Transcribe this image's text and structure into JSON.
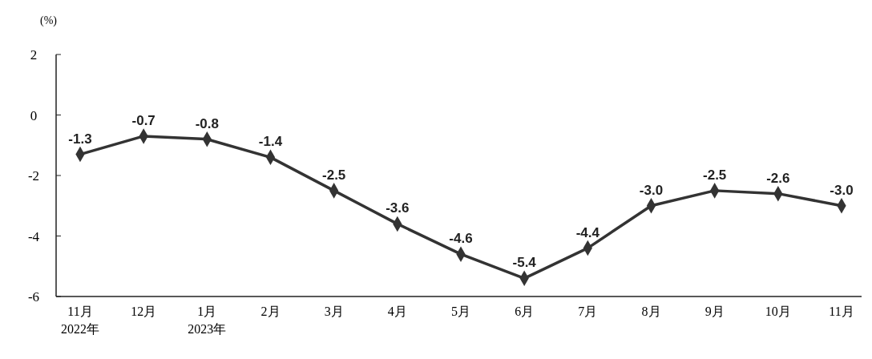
{
  "chart_data": {
    "type": "line",
    "ylabel": "(%)",
    "categories": [
      "11月\n2022年",
      "12月",
      "1月\n2023年",
      "2月",
      "3月",
      "4月",
      "5月",
      "6月",
      "7月",
      "8月",
      "9月",
      "10月",
      "11月"
    ],
    "series": [
      {
        "color": "#333333",
        "values": [
          -1.3,
          -0.7,
          -0.8,
          -1.4,
          -2.5,
          -3.6,
          -4.6,
          -5.4,
          -4.4,
          -3.0,
          -2.5,
          -2.6,
          -3.0
        ],
        "value_labels": [
          "-1.3",
          "-0.7",
          "-0.8",
          "-1.4",
          "-2.5",
          "-3.6",
          "-4.6",
          "-5.4",
          "-4.4",
          "-3.0",
          "-2.5",
          "-2.6",
          "-3.0"
        ]
      }
    ],
    "ylim": [
      -6,
      2
    ],
    "yticks": [
      -6,
      -4,
      -2,
      0,
      2
    ],
    "grid": false,
    "marker": "diamond",
    "line_style": "solid"
  }
}
